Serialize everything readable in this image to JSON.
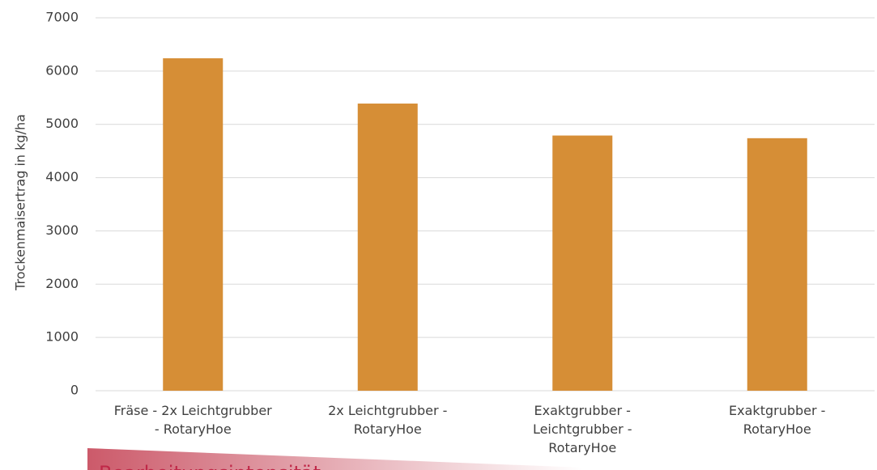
{
  "chart_data": {
    "type": "bar",
    "y_axis_label": "Trockenmaisertrag in kg/ha",
    "categories": [
      "Fräse - 2x Leichtgrubber\n- RotaryHoe",
      "2x Leichtgrubber -\nRotaryHoe",
      "Exaktgrubber -\nLeichtgrubber -\nRotaryHoe",
      "Exaktgrubber -\nRotaryHoe"
    ],
    "values": [
      6240,
      5390,
      4790,
      4740
    ],
    "color": "#d68e36",
    "ylim": [
      0,
      7000
    ],
    "yticks": [
      0,
      1000,
      2000,
      3000,
      4000,
      5000,
      6000,
      7000
    ],
    "grid": true,
    "annotation": "Bearbeitungsintensität"
  }
}
